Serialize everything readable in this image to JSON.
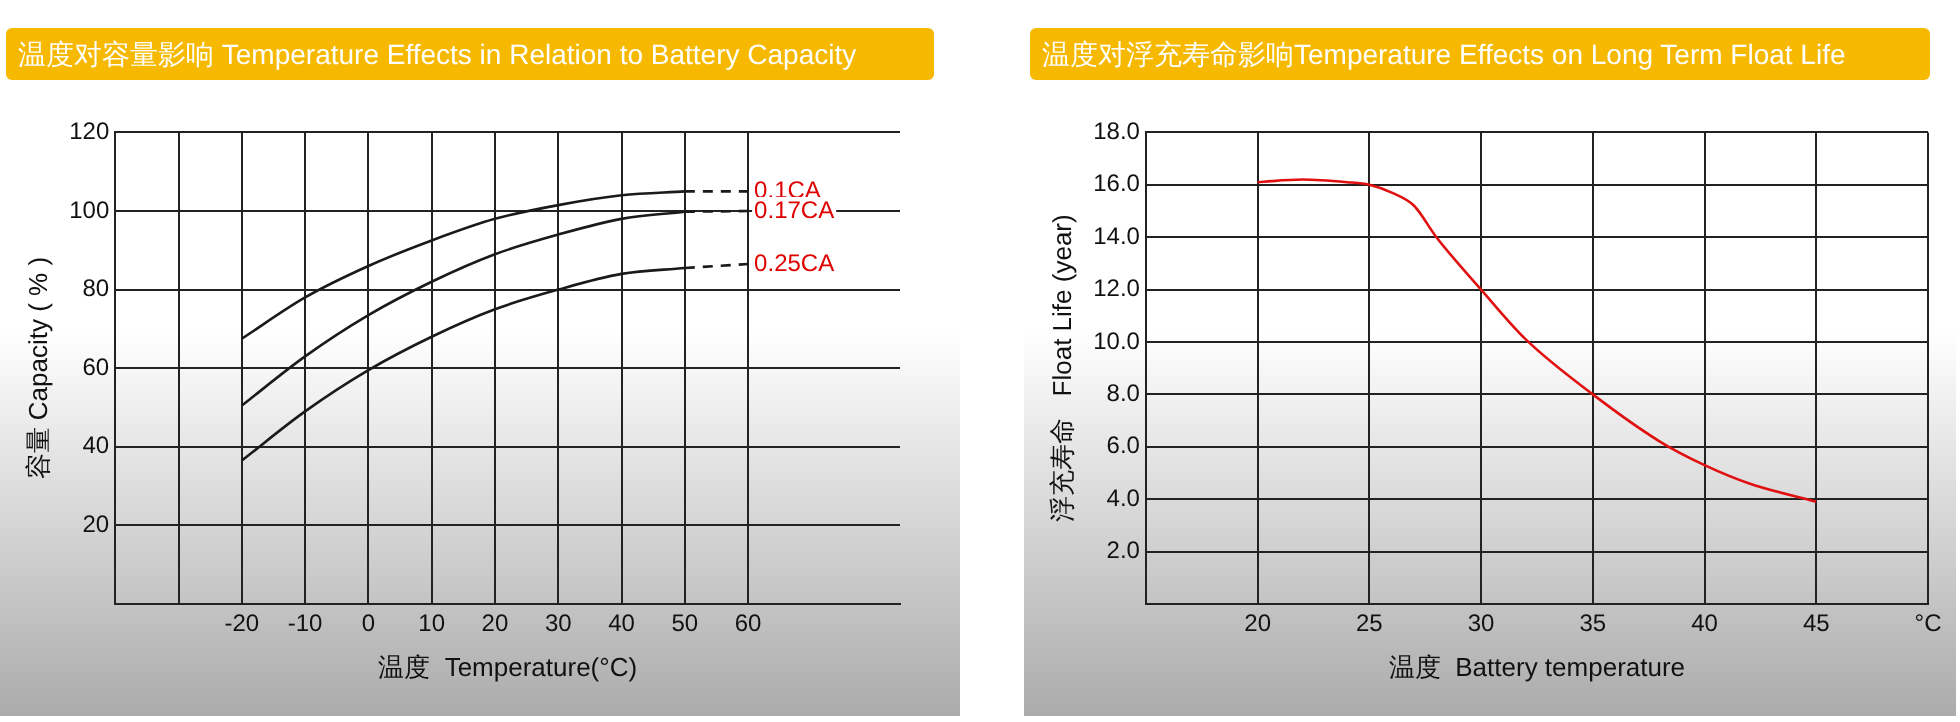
{
  "chart_data": [
    {
      "type": "line",
      "title": "温度对容量影响 Temperature Effects in Relation to Battery Capacity",
      "xlabel": "温度  Temperature(°C)",
      "ylabel": "容量 Capacity ( % )",
      "xlim": [
        -40,
        84
      ],
      "xticks": [
        {
          "value": -40,
          "label": null
        },
        {
          "value": -30,
          "label": null
        },
        -20,
        -10,
        0,
        10,
        20,
        30,
        40,
        50,
        60
      ],
      "ylim": [
        0,
        120
      ],
      "yticks": [
        {
          "value": 0,
          "label": null
        },
        20,
        40,
        60,
        80,
        100,
        120
      ],
      "grid": true,
      "legend": false,
      "marker": "none",
      "series": [
        {
          "color": "#1a1a1a",
          "x": [
            -20,
            -10,
            0,
            10,
            20,
            30,
            40,
            50
          ],
          "values": [
            67.5,
            78,
            86,
            92.5,
            98,
            101.5,
            104,
            105
          ]
        },
        {
          "name": "0.1CA",
          "color": "#1a1a1a",
          "line_style": "dashed",
          "x": [
            50,
            60
          ],
          "values": [
            105,
            105
          ]
        },
        {
          "color": "#1a1a1a",
          "x": [
            -20,
            -10,
            0,
            10,
            20,
            30,
            40,
            50
          ],
          "values": [
            50.5,
            63,
            73.5,
            82,
            89,
            94,
            98,
            99.8
          ]
        },
        {
          "name": "0.17CA",
          "color": "#1a1a1a",
          "line_style": "dashed",
          "x": [
            50,
            60
          ],
          "values": [
            99.8,
            100
          ]
        },
        {
          "color": "#1a1a1a",
          "x": [
            -20,
            -10,
            0,
            10,
            20,
            30,
            40,
            50
          ],
          "values": [
            36.5,
            49,
            59.5,
            68,
            75,
            80,
            84,
            85.5
          ]
        },
        {
          "name": "0.25CA",
          "color": "#1a1a1a",
          "line_style": "dashed",
          "x": [
            50,
            60
          ],
          "values": [
            85.5,
            86.5
          ]
        }
      ]
    },
    {
      "type": "line",
      "title": "温度对浮充寿命影响Temperature Effects on Long Term Float Life",
      "xlabel": "温度  Battery temperature",
      "ylabel": "浮充寿命   Float Life (year)",
      "xlim": [
        15,
        50
      ],
      "xticks": [
        {
          "value": 15,
          "label": null
        },
        20,
        25,
        30,
        35,
        40,
        45,
        {
          "value": 50,
          "label": "°C"
        }
      ],
      "ylim": [
        0,
        18
      ],
      "yticks": [
        {
          "value": 0,
          "label": null
        },
        {
          "value": 2,
          "label": "2.0"
        },
        {
          "value": 4,
          "label": "4.0"
        },
        {
          "value": 6,
          "label": "6.0"
        },
        {
          "value": 8,
          "label": "8.0"
        },
        {
          "value": 10,
          "label": "10.0"
        },
        {
          "value": 12,
          "label": "12.0"
        },
        {
          "value": 14,
          "label": "14.0"
        },
        {
          "value": 16,
          "label": "16.0"
        },
        {
          "value": 18,
          "label": "18.0"
        }
      ],
      "grid": true,
      "legend": false,
      "marker": "none",
      "series": [
        {
          "color": "#e01010",
          "x": [
            20,
            22,
            24,
            25,
            26,
            27,
            28,
            30,
            32,
            35,
            38,
            40,
            42,
            45
          ],
          "values": [
            16.1,
            16.2,
            16.1,
            16,
            15.7,
            15.2,
            14,
            12,
            10.1,
            8,
            6.2,
            5.3,
            4.6,
            3.9
          ]
        }
      ]
    }
  ]
}
